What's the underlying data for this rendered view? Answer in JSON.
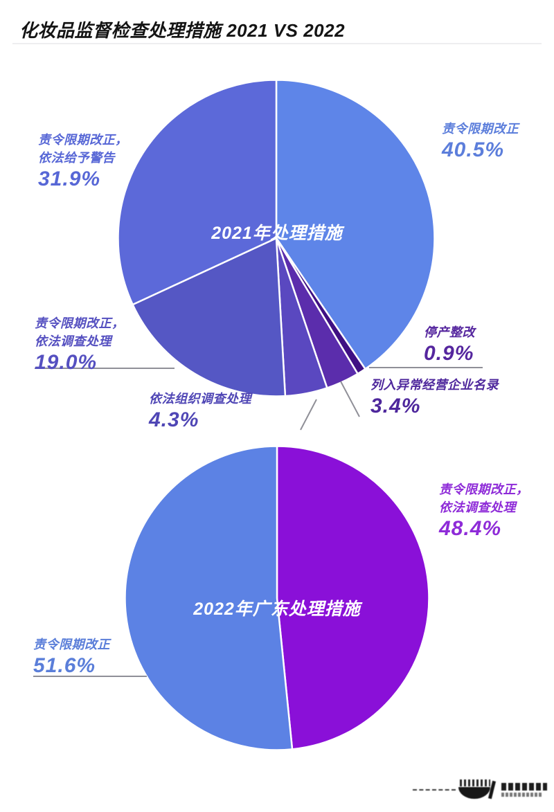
{
  "page": {
    "title": "化妆品监督检查处理措施 2021 VS 2022",
    "background": "#FFFFFF",
    "divider_color": "#E9E9EC",
    "line_color": "#8F8F97"
  },
  "chart_data": [
    {
      "type": "pie",
      "title": "2021年处理措施",
      "center_label": "2021年处理措施",
      "value_unit": "%",
      "start_angle_deg": 0,
      "direction": "clockwise",
      "slices": [
        {
          "label": "责令限期改正",
          "value": 40.5,
          "color": "#5E85E8"
        },
        {
          "label": "停产整改",
          "value": 0.9,
          "color": "#3F1083"
        },
        {
          "label": "列入异常经营企业名录",
          "value": 3.4,
          "color": "#5B2DAC"
        },
        {
          "label": "依法组织调查处理",
          "value": 4.3,
          "color": "#5A48C0"
        },
        {
          "label": "责令限期改正，依法调查处理",
          "value": 19.0,
          "color": "#5557C4"
        },
        {
          "label": "责令限期改正，依法给予警告",
          "value": 31.9,
          "color": "#5C69D9"
        }
      ]
    },
    {
      "type": "pie",
      "title": "2022年广东处理措施",
      "center_label": "2022年广东处理措施",
      "value_unit": "%",
      "start_angle_deg": 0,
      "direction": "clockwise",
      "slices": [
        {
          "label": "责令限期改正，依法调查处理",
          "value": 48.4,
          "color": "#8A10D8"
        },
        {
          "label": "责令限期改正",
          "value": 51.6,
          "color": "#5C82E4"
        }
      ]
    }
  ],
  "callouts": {
    "pie1": [
      {
        "lines": [
          "责令限期改正"
        ],
        "pct": "40.5%",
        "color": "#5C7EDB"
      },
      {
        "lines": [
          "责令限期改正，",
          "依法给予警告"
        ],
        "pct": "31.9%",
        "color": "#5767D6"
      },
      {
        "lines": [
          "责令限期改正，",
          "依法调查处理"
        ],
        "pct": "19.0%",
        "color": "#5550C0"
      },
      {
        "lines": [
          "依法组织调查处理"
        ],
        "pct": "4.3%",
        "color": "#4F46B5"
      },
      {
        "lines": [
          "停产整改"
        ],
        "pct": "0.9%",
        "color": "#55269E"
      },
      {
        "lines": [
          "列入异常经营企业名录"
        ],
        "pct": "3.4%",
        "color": "#4E279C"
      }
    ],
    "pie2": [
      {
        "lines": [
          "责令限期改正，",
          "依法调查处理"
        ],
        "pct": "48.4%",
        "color": "#8E2BD8"
      },
      {
        "lines": [
          "责令限期改正"
        ],
        "pct": "51.6%",
        "color": "#5A7ED9"
      }
    ]
  },
  "watermark": {
    "icon": "publisher-logo-icon",
    "color": "#161616"
  }
}
